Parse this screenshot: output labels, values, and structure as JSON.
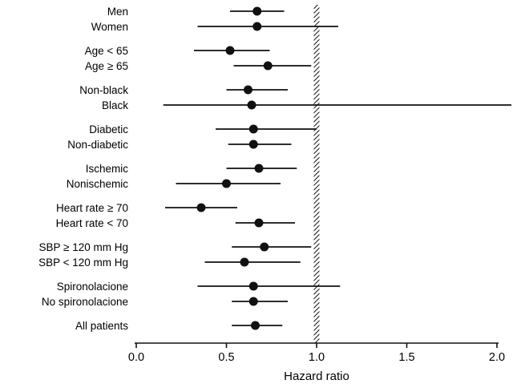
{
  "page": {
    "background": "#ffffff",
    "foreground": "#000000"
  },
  "chart_data": {
    "type": "scatter",
    "variant": "forest-plot",
    "title": "",
    "xlabel": "Hazard ratio",
    "x_ticks": [
      0.0,
      0.5,
      1.0,
      1.5,
      2.0
    ],
    "x_tick_labels": [
      "0.0",
      "0.5",
      "1.0",
      "1.5",
      "2.0"
    ],
    "xlim": [
      0.0,
      2.1
    ],
    "reference_line_x": 1.0,
    "grid": false,
    "legend": "none",
    "marker_color": "#111111",
    "line_color": "#111111",
    "groups": [
      {
        "rows": [
          {
            "label": "Men",
            "estimate": 0.67,
            "ci_low": 0.52,
            "ci_high": 0.82
          },
          {
            "label": "Women",
            "estimate": 0.67,
            "ci_low": 0.34,
            "ci_high": 1.12
          }
        ]
      },
      {
        "rows": [
          {
            "label": "Age < 65",
            "estimate": 0.52,
            "ci_low": 0.32,
            "ci_high": 0.74
          },
          {
            "label": "Age ≥ 65",
            "estimate": 0.73,
            "ci_low": 0.54,
            "ci_high": 0.97
          }
        ]
      },
      {
        "rows": [
          {
            "label": "Non-black",
            "estimate": 0.62,
            "ci_low": 0.5,
            "ci_high": 0.84
          },
          {
            "label": "Black",
            "estimate": 0.64,
            "ci_low": 0.15,
            "ci_high": 2.08
          }
        ]
      },
      {
        "rows": [
          {
            "label": "Diabetic",
            "estimate": 0.65,
            "ci_low": 0.44,
            "ci_high": 1.0
          },
          {
            "label": "Non-diabetic",
            "estimate": 0.65,
            "ci_low": 0.51,
            "ci_high": 0.86
          }
        ]
      },
      {
        "rows": [
          {
            "label": "Ischemic",
            "estimate": 0.68,
            "ci_low": 0.5,
            "ci_high": 0.89
          },
          {
            "label": "Nonischemic",
            "estimate": 0.5,
            "ci_low": 0.22,
            "ci_high": 0.8
          }
        ]
      },
      {
        "rows": [
          {
            "label": "Heart rate ≥ 70",
            "estimate": 0.36,
            "ci_low": 0.16,
            "ci_high": 0.56
          },
          {
            "label": "Heart rate < 70",
            "estimate": 0.68,
            "ci_low": 0.55,
            "ci_high": 0.88
          }
        ]
      },
      {
        "rows": [
          {
            "label": "SBP ≥ 120 mm Hg",
            "estimate": 0.71,
            "ci_low": 0.53,
            "ci_high": 0.97
          },
          {
            "label": "SBP < 120 mm Hg",
            "estimate": 0.6,
            "ci_low": 0.38,
            "ci_high": 0.91
          }
        ]
      },
      {
        "rows": [
          {
            "label": "Spironolacione",
            "estimate": 0.65,
            "ci_low": 0.34,
            "ci_high": 1.13
          },
          {
            "label": "No spironolacione",
            "estimate": 0.65,
            "ci_low": 0.53,
            "ci_high": 0.84
          }
        ]
      },
      {
        "rows": [
          {
            "label": "All patients",
            "estimate": 0.66,
            "ci_low": 0.53,
            "ci_high": 0.81
          }
        ]
      }
    ]
  }
}
